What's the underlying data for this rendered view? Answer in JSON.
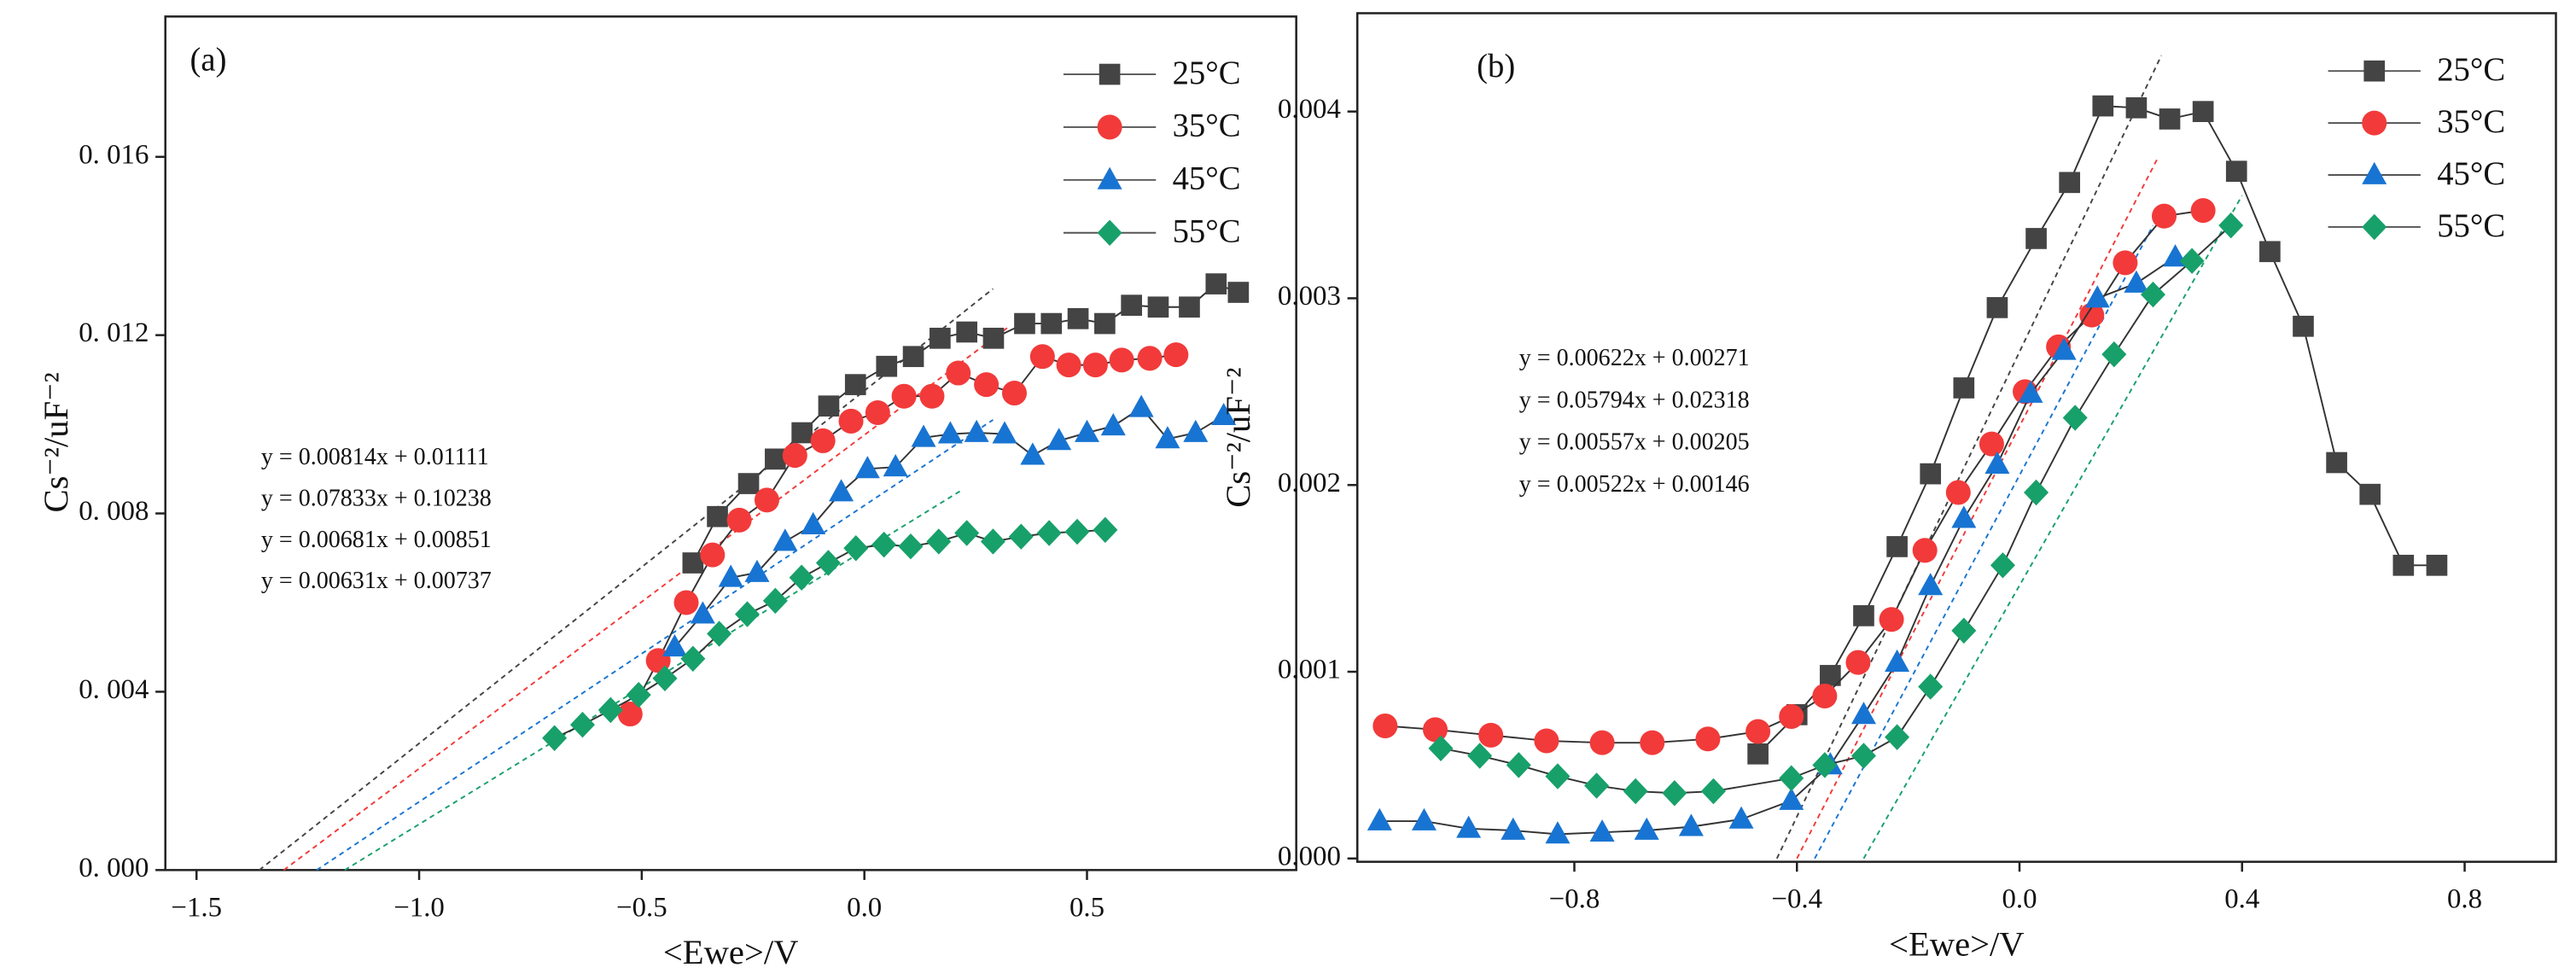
{
  "chart_data": [
    {
      "type": "line",
      "panel": "(a)",
      "x_label": "<Ewe>/V",
      "y_label": "Cs⁻²/uF⁻²",
      "xlim": [
        -1.57,
        0.97
      ],
      "ylim": [
        0,
        0.019
      ],
      "xticks": [
        {
          "value": -1.5,
          "label": "−1.5"
        },
        {
          "value": -1,
          "label": "−1.0"
        },
        {
          "value": -0.5,
          "label": "−0.5"
        },
        {
          "value": 0,
          "label": "0.0"
        },
        {
          "value": 0.5,
          "label": "0.5"
        }
      ],
      "yticks": [
        {
          "value": 0,
          "label": "0. 000"
        },
        {
          "value": 0.004,
          "label": "0. 004"
        },
        {
          "value": 0.008,
          "label": "0. 008"
        },
        {
          "value": 0.012,
          "label": "0. 012"
        },
        {
          "value": 0.016,
          "label": "0. 016"
        }
      ],
      "series": [
        {
          "name": "25°C",
          "color": "#444444",
          "marker": "square",
          "x": [
            -0.385,
            -0.33,
            -0.26,
            -0.2,
            -0.14,
            -0.08,
            -0.02,
            0.05,
            0.11,
            0.17,
            0.23,
            0.29,
            0.36,
            0.42,
            0.48,
            0.54,
            0.6,
            0.66,
            0.73,
            0.79,
            0.84
          ],
          "values": [
            0.00689,
            0.00793,
            0.00867,
            0.00922,
            0.00981,
            0.01041,
            0.01089,
            0.0113,
            0.01152,
            0.01193,
            0.01207,
            0.01193,
            0.01226,
            0.01226,
            0.01237,
            0.01226,
            0.01267,
            0.01263,
            0.01263,
            0.01315,
            0.01296
          ]
        },
        {
          "name": "35°C",
          "color": "#f23a3a",
          "marker": "circle",
          "x": [
            -0.526,
            -0.463,
            -0.4,
            -0.341,
            -0.281,
            -0.219,
            -0.156,
            -0.093,
            -0.03,
            0.03,
            0.089,
            0.152,
            0.211,
            0.274,
            0.337,
            0.4,
            0.459,
            0.519,
            0.578,
            0.641,
            0.7
          ],
          "values": [
            0.0035,
            0.0047,
            0.006,
            0.00707,
            0.00785,
            0.0083,
            0.0093,
            0.00963,
            0.01007,
            0.01026,
            0.01063,
            0.01063,
            0.01115,
            0.01089,
            0.0107,
            0.01152,
            0.01133,
            0.01133,
            0.01144,
            0.01148,
            0.01156
          ]
        },
        {
          "name": "45°C",
          "color": "#1874d2",
          "marker": "triangle",
          "x": [
            -0.426,
            -0.363,
            -0.3,
            -0.241,
            -0.178,
            -0.115,
            -0.052,
            0.007,
            0.07,
            0.133,
            0.193,
            0.252,
            0.315,
            0.378,
            0.437,
            0.5,
            0.559,
            0.622,
            0.681,
            0.744,
            0.807
          ],
          "values": [
            0.005,
            0.00574,
            0.00656,
            0.00667,
            0.00737,
            0.00774,
            0.00848,
            0.009,
            0.00904,
            0.0097,
            0.00978,
            0.00981,
            0.00978,
            0.0093,
            0.00963,
            0.00981,
            0.00996,
            0.01037,
            0.00967,
            0.00981,
            0.01019
          ]
        },
        {
          "name": "55°C",
          "color": "#18a06a",
          "marker": "diamond",
          "x": [
            -0.696,
            -0.633,
            -0.57,
            -0.507,
            -0.448,
            -0.385,
            -0.326,
            -0.263,
            -0.2,
            -0.141,
            -0.081,
            -0.019,
            0.044,
            0.104,
            0.167,
            0.23,
            0.289,
            0.352,
            0.415,
            0.478,
            0.541
          ],
          "values": [
            0.00296,
            0.00326,
            0.00359,
            0.00393,
            0.0043,
            0.00474,
            0.0053,
            0.00574,
            0.00604,
            0.00656,
            0.00689,
            0.00722,
            0.0073,
            0.00726,
            0.00737,
            0.00756,
            0.00737,
            0.00748,
            0.00756,
            0.00759,
            0.00763
          ]
        }
      ],
      "fits": [
        {
          "color": "#444444",
          "x": [
            -1.359,
            0.289
          ],
          "y": [
            0,
            0.01304
          ]
        },
        {
          "color": "#f23a3a",
          "x": [
            -1.304,
            0.326
          ],
          "y": [
            0,
            0.0122
          ]
        },
        {
          "color": "#1874d2",
          "x": [
            -1.23,
            0.289
          ],
          "y": [
            0,
            0.0101
          ]
        },
        {
          "color": "#18a06a",
          "x": [
            -1.167,
            0.215
          ],
          "y": [
            0,
            0.0085
          ]
        }
      ],
      "annotations": [
        {
          "text": "y = 0.00814x + 0.01111",
          "color": "#222222"
        },
        {
          "text": "y = 0.07833x + 0.10238",
          "color": "#f25555"
        },
        {
          "text": "y = 0.00681x + 0.00851",
          "color": "#1e88e5"
        },
        {
          "text": "y = 0.00631x + 0.00737",
          "color": "#1a9e5c"
        }
      ]
    },
    {
      "type": "line",
      "panel": "(b)",
      "x_label": "<Ewe>/V",
      "y_label": "Cs⁻²/uF⁻²",
      "xlim": [
        -1.19,
        0.97
      ],
      "ylim": [
        0,
        0.0045
      ],
      "xticks": [
        {
          "value": -0.8,
          "label": "−0.8"
        },
        {
          "value": -0.4,
          "label": "−0.4"
        },
        {
          "value": 0,
          "label": "0.0"
        },
        0.4,
        0.8
      ],
      "yticks": [
        {
          "value": 0,
          "label": "0.000"
        },
        0.001,
        0.002,
        0.003,
        0.004
      ],
      "series": [
        {
          "name": "25°C",
          "color": "#444444",
          "marker": "square",
          "x": [
            -0.47,
            -0.4,
            -0.34,
            -0.28,
            -0.22,
            -0.16,
            -0.1,
            -0.04,
            0.03,
            0.09,
            0.15,
            0.21,
            0.27,
            0.33,
            0.39,
            0.45,
            0.51,
            0.57,
            0.63,
            0.69,
            0.75
          ],
          "values": [
            0.00056,
            0.00077,
            0.00098,
            0.0013,
            0.00167,
            0.00206,
            0.00252,
            0.00295,
            0.00332,
            0.00362,
            0.00403,
            0.00402,
            0.00396,
            0.004,
            0.00368,
            0.00325,
            0.00285,
            0.00212,
            0.00195,
            0.00157,
            0.00157
          ]
        },
        {
          "name": "35°C",
          "color": "#f23a3a",
          "marker": "circle",
          "x": [
            -1.14,
            -1.05,
            -0.95,
            -0.85,
            -0.75,
            -0.66,
            -0.56,
            -0.47,
            -0.41,
            -0.35,
            -0.29,
            -0.23,
            -0.17,
            -0.11,
            -0.05,
            0.01,
            0.07,
            0.13,
            0.19,
            0.26,
            0.33
          ],
          "values": [
            0.00071,
            0.00069,
            0.00066,
            0.00063,
            0.00062,
            0.00062,
            0.00064,
            0.00068,
            0.00076,
            0.00087,
            0.00105,
            0.00128,
            0.00165,
            0.00196,
            0.00222,
            0.0025,
            0.00274,
            0.00291,
            0.00319,
            0.00344,
            0.00347
          ]
        },
        {
          "name": "45°C",
          "color": "#1874d2",
          "marker": "triangle",
          "x": [
            -1.15,
            -1.07,
            -0.99,
            -0.91,
            -0.83,
            -0.75,
            -0.67,
            -0.59,
            -0.5,
            -0.41,
            -0.34,
            -0.28,
            -0.22,
            -0.16,
            -0.1,
            -0.04,
            0.02,
            0.08,
            0.14,
            0.21,
            0.28
          ],
          "values": [
            0.0002,
            0.0002,
            0.00016,
            0.00015,
            0.00013,
            0.00014,
            0.00015,
            0.00017,
            0.00021,
            0.00031,
            0.0005,
            0.00077,
            0.00105,
            0.00146,
            0.00182,
            0.00211,
            0.00249,
            0.00272,
            0.003,
            0.00308,
            0.00322
          ]
        },
        {
          "name": "55°C",
          "color": "#18a06a",
          "marker": "diamond",
          "x": [
            -1.04,
            -0.97,
            -0.9,
            -0.83,
            -0.76,
            -0.69,
            -0.62,
            -0.55,
            -0.41,
            -0.35,
            -0.28,
            -0.22,
            -0.16,
            -0.1,
            -0.03,
            0.03,
            0.1,
            0.17,
            0.24,
            0.31,
            0.38
          ],
          "values": [
            0.00059,
            0.00055,
            0.0005,
            0.00044,
            0.00039,
            0.00036,
            0.00035,
            0.00036,
            0.00043,
            0.0005,
            0.00055,
            0.00065,
            0.00092,
            0.00122,
            0.00157,
            0.00196,
            0.00236,
            0.0027,
            0.00302,
            0.0032,
            0.00339
          ]
        }
      ],
      "fits": [
        {
          "color": "#444444",
          "x": [
            -0.436,
            0.255
          ],
          "y": [
            0,
            0.0043
          ]
        },
        {
          "color": "#f23a3a",
          "x": [
            -0.4,
            0.25
          ],
          "y": [
            0,
            0.00376
          ]
        },
        {
          "color": "#1874d2",
          "x": [
            -0.368,
            0.24
          ],
          "y": [
            0,
            0.00339
          ]
        },
        {
          "color": "#18a06a",
          "x": [
            -0.28,
            0.4
          ],
          "y": [
            0,
            0.00355
          ]
        }
      ],
      "annotations": [
        {
          "text": "y = 0.00622x + 0.00271",
          "color": "#222222"
        },
        {
          "text": "y = 0.05794x + 0.02318",
          "color": "#f25555"
        },
        {
          "text": "y = 0.00557x + 0.00205",
          "color": "#1e88e5"
        },
        {
          "text": "y = 0.00522x + 0.00146",
          "color": "#1a9e5c"
        }
      ]
    }
  ]
}
